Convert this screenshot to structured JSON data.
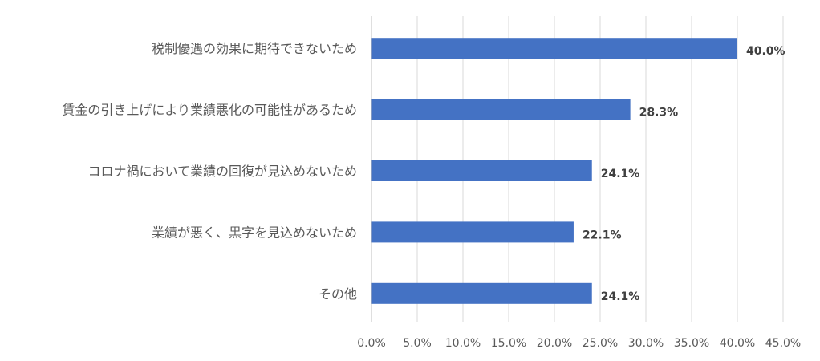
{
  "chart_data": {
    "type": "bar",
    "orientation": "horizontal",
    "categories": [
      "税制優遇の効果に期待できないため",
      "賃金の引き上げにより業績悪化の可能性があるため",
      "コロナ禍において業績の回復が見込めないため",
      "業績が悪く、黒字を見込めないため",
      "その他"
    ],
    "values": [
      40.0,
      28.3,
      24.1,
      22.1,
      24.1
    ],
    "data_labels": [
      "40.0%",
      "28.3%",
      "24.1%",
      "22.1%",
      "24.1%"
    ],
    "x_ticks": [
      0,
      5,
      10,
      15,
      20,
      25,
      30,
      35,
      40,
      45
    ],
    "x_tick_labels": [
      "0.0%",
      "5.0%",
      "10.0%",
      "15.0%",
      "20.0%",
      "25.0%",
      "30.0%",
      "35.0%",
      "40.0%",
      "45.0%"
    ],
    "xlim": [
      0,
      45
    ],
    "grid": "vertical",
    "legend": "none",
    "bar_color": "#4472c4",
    "title": "",
    "xlabel": "",
    "ylabel": ""
  }
}
